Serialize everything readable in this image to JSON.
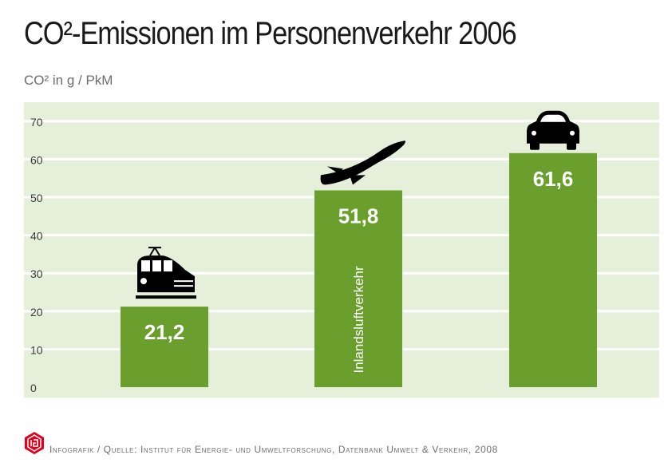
{
  "title": "CO²-Emissionen im Personenverkehr 2006",
  "unit_label": "CO²  in g / PkM",
  "source": "Infografik / Quelle: Institut für Energie- und Umweltforschung, Datenbank Umwelt & Verkehr, 2008",
  "colors": {
    "bar": "#6a9f2e",
    "plot_bg": "#e6efd9",
    "grid": "#ffffff",
    "text": "#1a1a1a",
    "logo": "#e2001a"
  },
  "chart_data": {
    "type": "bar",
    "title": "CO²-Emissionen im Personenverkehr 2006",
    "ylabel": "CO²  in g / PkM",
    "xlabel": "",
    "ylim": [
      0,
      70
    ],
    "yticks": [
      0,
      10,
      20,
      30,
      40,
      50,
      60,
      70
    ],
    "grid": true,
    "categories": [
      "train-icon",
      "plane-icon",
      "car-icon"
    ],
    "values": [
      21.2,
      51.8,
      61.6
    ],
    "value_labels": [
      "21,2",
      "51,8",
      "61,6"
    ],
    "bar_inner_labels": [
      "",
      "Inlandsluftverkehr",
      ""
    ]
  }
}
